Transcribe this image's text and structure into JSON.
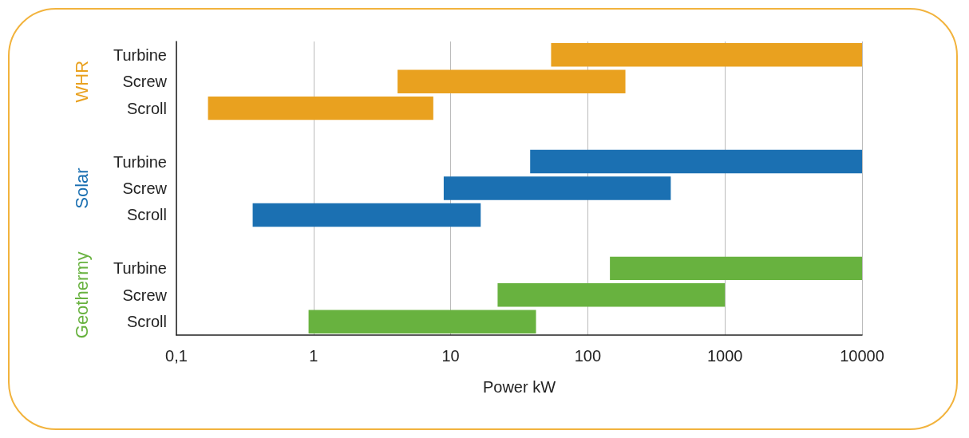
{
  "chart_data": {
    "type": "bar",
    "orientation": "horizontal",
    "xlabel": "Power kW",
    "log": "x",
    "grid": "x",
    "legend": false,
    "categories": [
      "Turbine",
      "Screw",
      "Scroll",
      null,
      "Turbine",
      "Screw",
      "Scroll",
      null,
      "Turbine",
      "Screw",
      "Scroll"
    ],
    "xlim": [
      0.1,
      10000
    ],
    "xticks": [
      {
        "value": 0.1,
        "label": "0,1"
      },
      1,
      10,
      100,
      1000,
      10000
    ],
    "series": [
      {
        "name": "WHR",
        "color": "#e9a11f",
        "base": [
          54,
          4.1,
          0.17,
          null,
          null,
          null,
          null,
          null,
          null,
          null,
          null
        ],
        "values": [
          9946,
          184,
          7.3,
          null,
          null,
          null,
          null,
          null,
          null,
          null,
          null
        ]
      },
      {
        "name": "Solar",
        "color": "#1b70b2",
        "base": [
          null,
          null,
          null,
          null,
          38,
          8.9,
          0.36,
          null,
          null,
          null,
          null
        ],
        "values": [
          null,
          null,
          null,
          null,
          9962,
          394,
          16.2,
          null,
          null,
          null,
          null
        ]
      },
      {
        "name": "Geothermy",
        "color": "#68b23f",
        "base": [
          null,
          null,
          null,
          null,
          null,
          null,
          null,
          null,
          145,
          22,
          0.92
        ],
        "values": [
          null,
          null,
          null,
          null,
          null,
          null,
          null,
          null,
          9855,
          978,
          41
        ]
      }
    ]
  }
}
